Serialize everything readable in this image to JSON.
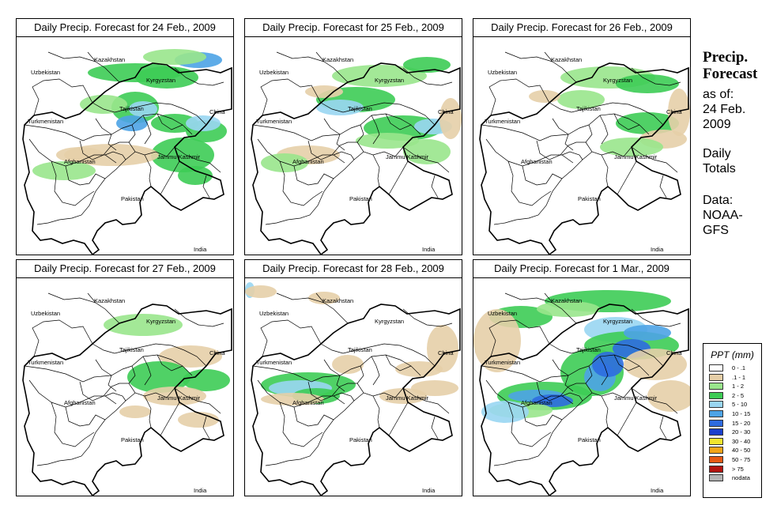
{
  "panels": [
    {
      "title": "Daily Precip. Forecast for  24 Feb., 2009"
    },
    {
      "title": "Daily Precip. Forecast for  25 Feb., 2009"
    },
    {
      "title": "Daily Precip. Forecast for  26 Feb., 2009"
    },
    {
      "title": "Daily Precip. Forecast for  27 Feb., 2009"
    },
    {
      "title": "Daily Precip. Forecast for  28 Feb., 2009"
    },
    {
      "title": "Daily Precip. Forecast for  1 Mar., 2009"
    }
  ],
  "map_labels": {
    "kazakhstan": "Kazakhstan",
    "uzbekistan": "Uzbekistan",
    "kyrgyzstan": "Kyrgyzstan",
    "tajikistan": "Tajikistan",
    "turkmenistan": "Turkmenistan",
    "china": "China",
    "afghanistan": "Afghanistan",
    "jammu_kashmir": "Jammu Kashmir",
    "pakistan": "Pakistan",
    "india": "India"
  },
  "sidebar": {
    "title_line1": "Precip.",
    "title_line2": "Forecast",
    "asof_line1": "as of:",
    "asof_line2": "24 Feb.",
    "asof_line3": "2009",
    "daily_line1": "Daily",
    "daily_line2": "Totals",
    "data_line1": "Data:",
    "data_line2": "NOAA-",
    "data_line3": "GFS"
  },
  "legend": {
    "title": "PPT (mm)",
    "items": [
      {
        "label": "0 - .1",
        "color": "#ffffff"
      },
      {
        "label": ".1 - 1",
        "color": "#e6cfa8"
      },
      {
        "label": "1 - 2",
        "color": "#99e68c"
      },
      {
        "label": "2 - 5",
        "color": "#3dcc55"
      },
      {
        "label": "5 - 10",
        "color": "#99d6f2"
      },
      {
        "label": "10 - 15",
        "color": "#4da3e6"
      },
      {
        "label": "15 - 20",
        "color": "#2e6be0"
      },
      {
        "label": "20 - 30",
        "color": "#1a3fcc"
      },
      {
        "label": "30 - 40",
        "color": "#f2e62e"
      },
      {
        "label": "40 - 50",
        "color": "#f2a51a"
      },
      {
        "label": "50 - 75",
        "color": "#e65a14"
      },
      {
        "label": "> 75",
        "color": "#b3140f"
      },
      {
        "label": "nodata",
        "color": "#b3b3b3"
      }
    ]
  }
}
